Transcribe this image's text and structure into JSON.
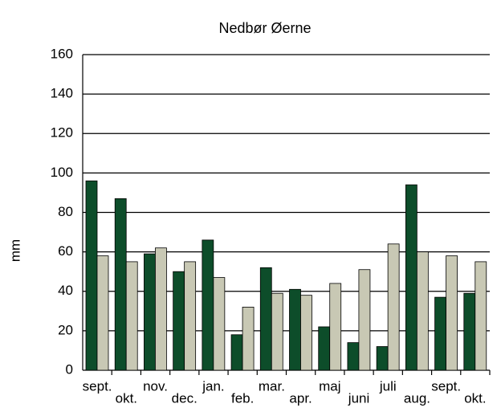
{
  "chart_data": {
    "type": "bar",
    "title": "Nedbør Øerne",
    "y_label": "mm",
    "categories": [
      "sept.",
      "okt.",
      "nov.",
      "dec.",
      "jan.",
      "feb.",
      "mar.",
      "apr.",
      "maj",
      "juni",
      "juli",
      "aug.",
      "sept.",
      "okt."
    ],
    "series": [
      {
        "color": "#0d4d2a",
        "values": [
          96,
          87,
          59,
          50,
          66,
          18,
          52,
          41,
          22,
          14,
          12,
          94,
          37,
          39
        ]
      },
      {
        "color": "#c8c8b4",
        "values": [
          58,
          55,
          62,
          55,
          47,
          32,
          39,
          38,
          44,
          51,
          64,
          60,
          58,
          55
        ]
      }
    ],
    "ylim": [
      0,
      160
    ],
    "yticks": [
      0,
      20,
      40,
      60,
      80,
      100,
      120,
      140,
      160
    ],
    "grid": true
  }
}
